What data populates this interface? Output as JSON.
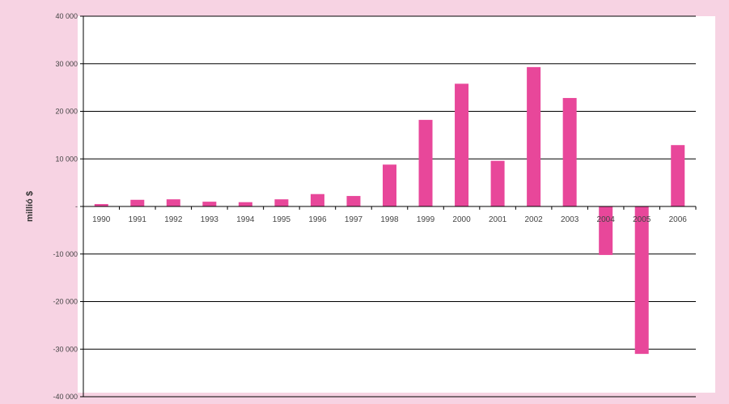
{
  "chart_data": {
    "type": "bar",
    "title": "",
    "xlabel": "",
    "ylabel": "millió $",
    "categories": [
      "1990",
      "1991",
      "1992",
      "1993",
      "1994",
      "1995",
      "1996",
      "1997",
      "1998",
      "1999",
      "2000",
      "2001",
      "2002",
      "2003",
      "2004",
      "2005",
      "2006"
    ],
    "series": [
      {
        "values": [
          500,
          1400,
          1500,
          1000,
          900,
          1500,
          2600,
          2200,
          8800,
          18200,
          25800,
          9600,
          29300,
          22800,
          -10200,
          -31000,
          12900
        ]
      }
    ],
    "ylim": [
      -40000,
      40000
    ],
    "yticks": [
      {
        "value": 40000,
        "label": "40 000"
      },
      {
        "value": 30000,
        "label": "30 000"
      },
      {
        "value": 20000,
        "label": "20 000"
      },
      {
        "value": 10000,
        "label": "10 000"
      },
      {
        "value": 0,
        "label": "-"
      },
      {
        "value": -10000,
        "label": "-10 000"
      },
      {
        "value": -20000,
        "label": "-20 000"
      },
      {
        "value": -30000,
        "label": "-30 000"
      },
      {
        "value": -40000,
        "label": "-40 000"
      }
    ],
    "grid": true,
    "legend": "none",
    "colors": {
      "bar": "#e8479a",
      "background": "#f7d3e3",
      "plot": "#ffffff",
      "gridline": "#000000"
    }
  }
}
